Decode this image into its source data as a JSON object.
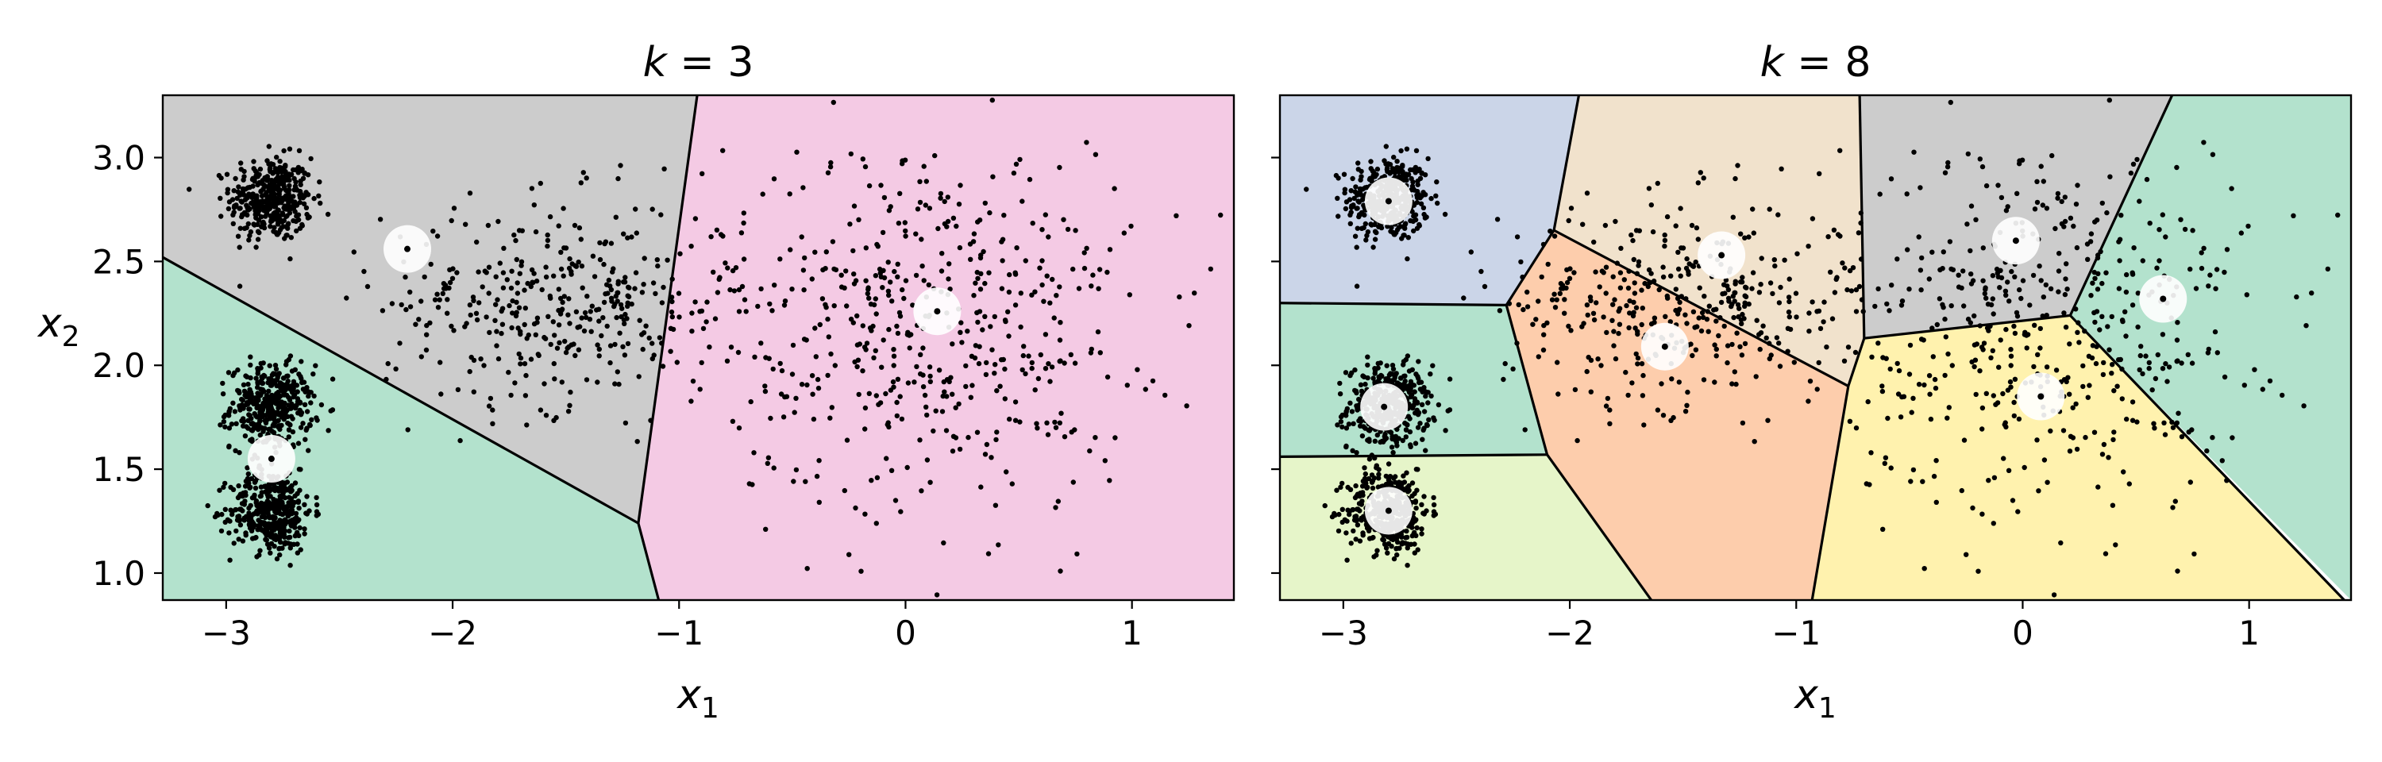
{
  "chart_data": [
    {
      "type": "scatter",
      "title": "k = 3",
      "title_var": "k",
      "title_value": "3",
      "xlabel": "x_1",
      "xlabel_var": "x",
      "xlabel_sub": "1",
      "ylabel": "x_2",
      "ylabel_var": "x",
      "ylabel_sub": "2",
      "xlim": [
        -3.28,
        1.45
      ],
      "ylim": [
        0.87,
        3.3
      ],
      "xticks": [
        -3,
        -2,
        -1,
        0,
        1
      ],
      "xtick_labels": [
        "−3",
        "−2",
        "−1",
        "0",
        "1"
      ],
      "yticks": [
        1.0,
        1.5,
        2.0,
        2.5,
        3.0
      ],
      "ytick_labels": [
        "1.0",
        "1.5",
        "2.0",
        "2.5",
        "3.0"
      ],
      "show_ytick_labels": true,
      "grid": false,
      "legend": "none",
      "regions": [
        {
          "color": "#cccccc",
          "polygon": [
            [
              -3.28,
              3.3
            ],
            [
              -0.92,
              3.3
            ],
            [
              -1.18,
              1.24
            ],
            [
              -3.28,
              2.52
            ]
          ]
        },
        {
          "color": "#b3e2cd",
          "polygon": [
            [
              -3.28,
              2.52
            ],
            [
              -1.18,
              1.24
            ],
            [
              -1.09,
              0.87
            ],
            [
              -3.28,
              0.87
            ]
          ]
        },
        {
          "color": "#f4cae4",
          "polygon": [
            [
              -0.92,
              3.3
            ],
            [
              1.45,
              3.3
            ],
            [
              1.45,
              0.87
            ],
            [
              -1.09,
              0.87
            ],
            [
              -1.18,
              1.24
            ]
          ]
        }
      ],
      "boundaries": [
        [
          [
            -3.28,
            2.52
          ],
          [
            -1.18,
            1.24
          ]
        ],
        [
          [
            -0.92,
            3.3
          ],
          [
            -1.18,
            1.24
          ]
        ],
        [
          [
            -1.18,
            1.24
          ],
          [
            -1.09,
            0.87
          ]
        ]
      ],
      "centroids": [
        {
          "x": -2.2,
          "y": 2.56
        },
        {
          "x": -2.8,
          "y": 1.55
        },
        {
          "x": 0.14,
          "y": 2.26
        }
      ],
      "point_clusters": [
        {
          "cx": -2.8,
          "cy": 2.8,
          "sx": 0.09,
          "sy": 0.1,
          "n": 400
        },
        {
          "cx": -2.8,
          "cy": 1.8,
          "sx": 0.09,
          "sy": 0.1,
          "n": 400
        },
        {
          "cx": -2.8,
          "cy": 1.3,
          "sx": 0.09,
          "sy": 0.1,
          "n": 400
        },
        {
          "cx": -1.5,
          "cy": 2.3,
          "sx": 0.4,
          "sy": 0.25,
          "n": 400
        },
        {
          "cx": 0.1,
          "cy": 2.2,
          "sx": 0.45,
          "sy": 0.45,
          "n": 500
        }
      ]
    },
    {
      "type": "scatter",
      "title": "k = 8",
      "title_var": "k",
      "title_value": "8",
      "xlabel": "x_1",
      "xlabel_var": "x",
      "xlabel_sub": "1",
      "ylabel": "",
      "xlim": [
        -3.28,
        1.45
      ],
      "ylim": [
        0.87,
        3.3
      ],
      "xticks": [
        -3,
        -2,
        -1,
        0,
        1
      ],
      "xtick_labels": [
        "−3",
        "−2",
        "−1",
        "0",
        "1"
      ],
      "yticks": [
        1.0,
        1.5,
        2.0,
        2.5,
        3.0
      ],
      "ytick_labels": [
        "",
        "",
        "",
        "",
        ""
      ],
      "show_ytick_labels": false,
      "grid": false,
      "legend": "none",
      "regions": [
        {
          "color": "#cbd5e8",
          "polygon": [
            [
              -3.28,
              3.3
            ],
            [
              -1.96,
              3.3
            ],
            [
              -2.07,
              2.65
            ],
            [
              -2.28,
              2.29
            ],
            [
              -3.28,
              2.3
            ]
          ]
        },
        {
          "color": "#b3e2cd",
          "polygon": [
            [
              -3.28,
              2.3
            ],
            [
              -2.28,
              2.29
            ],
            [
              -2.1,
              1.57
            ],
            [
              -3.28,
              1.56
            ]
          ]
        },
        {
          "color": "#e6f5c9",
          "polygon": [
            [
              -3.28,
              1.56
            ],
            [
              -2.1,
              1.57
            ],
            [
              -1.64,
              0.87
            ],
            [
              -3.28,
              0.87
            ]
          ]
        },
        {
          "color": "#f1e2cc",
          "polygon": [
            [
              -1.96,
              3.3
            ],
            [
              -0.72,
              3.3
            ],
            [
              -0.7,
              2.13
            ],
            [
              -0.77,
              1.9
            ],
            [
              -2.07,
              2.65
            ]
          ]
        },
        {
          "color": "#fdcdac",
          "polygon": [
            [
              -2.07,
              2.65
            ],
            [
              -0.77,
              1.9
            ],
            [
              -0.93,
              0.87
            ],
            [
              -1.64,
              0.87
            ],
            [
              -2.1,
              1.57
            ],
            [
              -2.28,
              2.29
            ]
          ]
        },
        {
          "color": "#cccccc",
          "polygon": [
            [
              -0.72,
              3.3
            ],
            [
              0.66,
              3.3
            ],
            [
              0.21,
              2.24
            ],
            [
              -0.7,
              2.13
            ]
          ]
        },
        {
          "color": "#b3e2cd",
          "polygon": [
            [
              0.66,
              3.3
            ],
            [
              1.45,
              3.3
            ],
            [
              1.45,
              0.87
            ],
            [
              0.21,
              2.24
            ]
          ]
        },
        {
          "color": "#fff2ae",
          "polygon": [
            [
              -0.7,
              2.13
            ],
            [
              0.21,
              2.24
            ],
            [
              1.42,
              0.87
            ],
            [
              -0.93,
              0.87
            ],
            [
              -0.77,
              1.9
            ]
          ]
        }
      ],
      "boundaries": [
        [
          [
            -1.96,
            3.3
          ],
          [
            -2.07,
            2.65
          ]
        ],
        [
          [
            -2.07,
            2.65
          ],
          [
            -2.28,
            2.29
          ]
        ],
        [
          [
            -3.28,
            2.3
          ],
          [
            -2.28,
            2.29
          ]
        ],
        [
          [
            -2.28,
            2.29
          ],
          [
            -2.1,
            1.57
          ]
        ],
        [
          [
            -3.28,
            1.56
          ],
          [
            -2.1,
            1.57
          ]
        ],
        [
          [
            -2.1,
            1.57
          ],
          [
            -1.64,
            0.87
          ]
        ],
        [
          [
            -2.07,
            2.65
          ],
          [
            -0.77,
            1.9
          ]
        ],
        [
          [
            -0.77,
            1.9
          ],
          [
            -0.93,
            0.87
          ]
        ],
        [
          [
            -0.77,
            1.9
          ],
          [
            -0.7,
            2.13
          ]
        ],
        [
          [
            -0.72,
            3.3
          ],
          [
            -0.7,
            2.13
          ]
        ],
        [
          [
            -0.7,
            2.13
          ],
          [
            0.21,
            2.24
          ]
        ],
        [
          [
            0.66,
            3.3
          ],
          [
            0.21,
            2.24
          ]
        ],
        [
          [
            0.21,
            2.24
          ],
          [
            1.42,
            0.87
          ]
        ]
      ],
      "centroids": [
        {
          "x": -2.8,
          "y": 2.79
        },
        {
          "x": -2.82,
          "y": 1.8
        },
        {
          "x": -2.8,
          "y": 1.3
        },
        {
          "x": -1.33,
          "y": 2.53
        },
        {
          "x": -1.58,
          "y": 2.09
        },
        {
          "x": -0.03,
          "y": 2.6
        },
        {
          "x": 0.62,
          "y": 2.32
        },
        {
          "x": 0.08,
          "y": 1.85
        }
      ],
      "point_clusters": [
        {
          "cx": -2.8,
          "cy": 2.8,
          "sx": 0.09,
          "sy": 0.1,
          "n": 400
        },
        {
          "cx": -2.8,
          "cy": 1.8,
          "sx": 0.09,
          "sy": 0.1,
          "n": 400
        },
        {
          "cx": -2.8,
          "cy": 1.3,
          "sx": 0.09,
          "sy": 0.1,
          "n": 400
        },
        {
          "cx": -1.5,
          "cy": 2.3,
          "sx": 0.4,
          "sy": 0.25,
          "n": 400
        },
        {
          "cx": 0.1,
          "cy": 2.2,
          "sx": 0.45,
          "sy": 0.45,
          "n": 500
        }
      ]
    }
  ],
  "colors": {
    "point": "#000000",
    "boundary": "#000000",
    "centroid_halo": "#ffffff",
    "axes_edge": "#000000"
  }
}
